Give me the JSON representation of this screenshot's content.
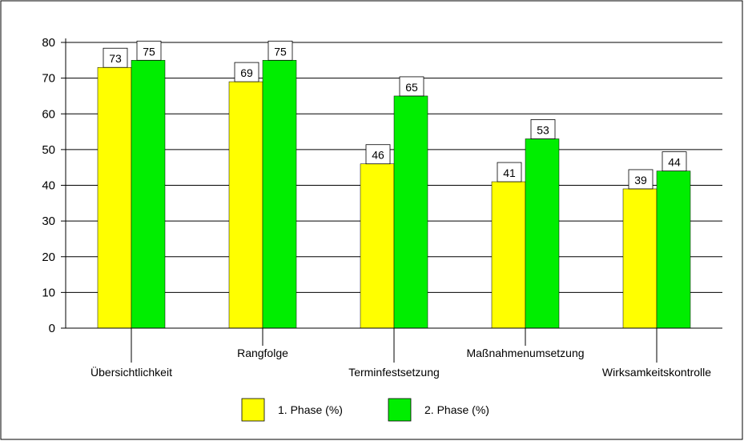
{
  "chart_data": {
    "type": "bar",
    "categories": [
      "Übersichtlichkeit",
      "Rangfolge",
      "Terminfestsetzung",
      "Maßnahmenumsetzung",
      "Wirksamkeitskontrolle"
    ],
    "series": [
      {
        "name": "1. Phase (%)",
        "values": [
          73,
          69,
          46,
          41,
          39
        ],
        "color": "#ffff00"
      },
      {
        "name": "2. Phase (%)",
        "values": [
          75,
          75,
          65,
          53,
          44
        ],
        "color": "#00ee00"
      }
    ],
    "ylim": [
      0,
      80
    ],
    "yticks": [
      0,
      10,
      20,
      30,
      40,
      50,
      60,
      70,
      80
    ],
    "grid": true,
    "data_labels": true,
    "legend_position": "bottom-center",
    "category_label_placement": "alternating"
  }
}
